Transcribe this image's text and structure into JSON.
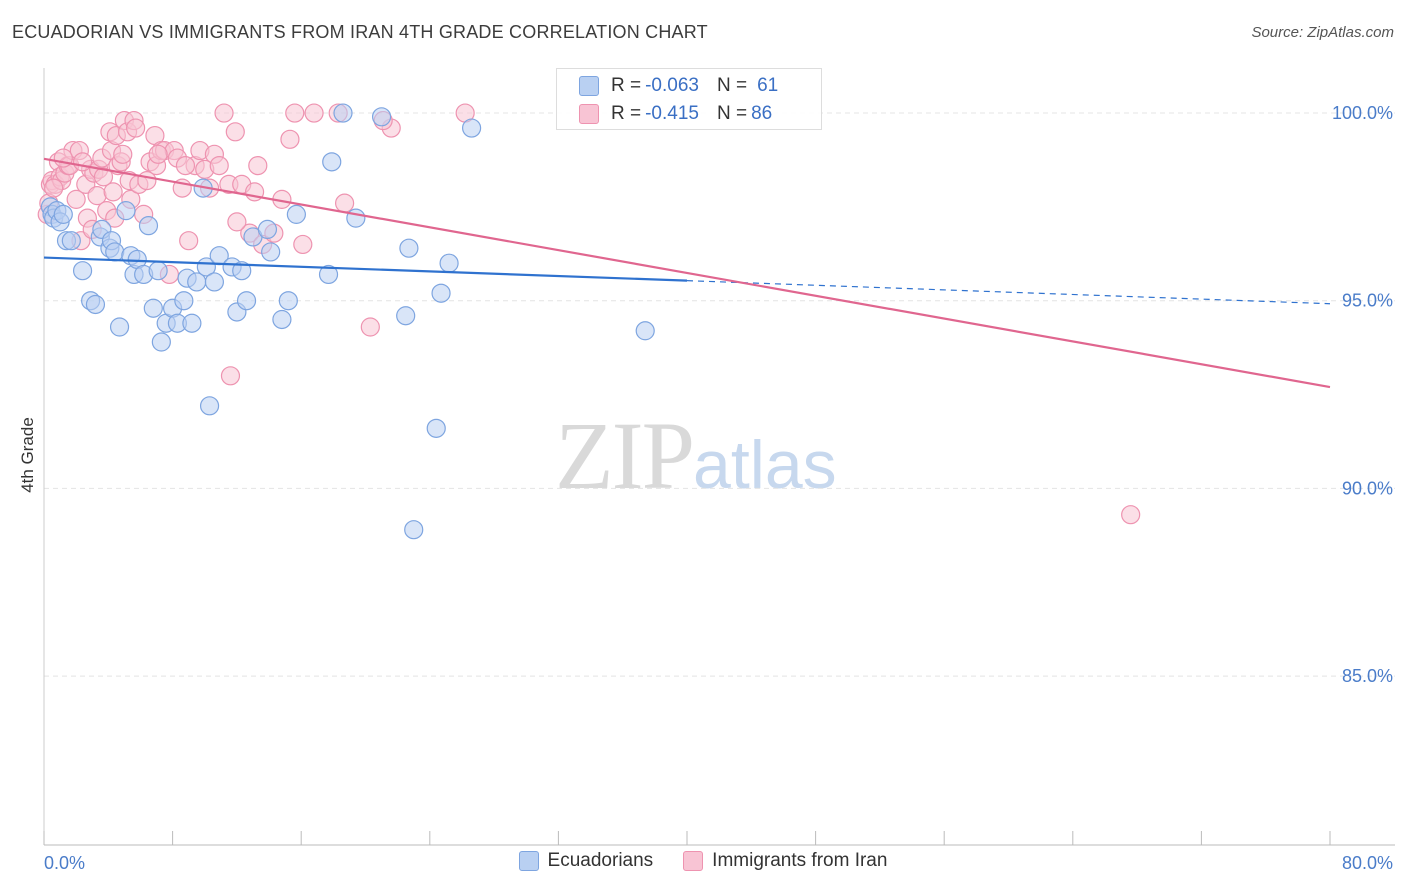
{
  "header": {
    "title": "ECUADORIAN VS IMMIGRANTS FROM IRAN 4TH GRADE CORRELATION CHART",
    "source": "Source: ZipAtlas.com"
  },
  "watermark": {
    "zip": "ZIP",
    "atlas": "atlas"
  },
  "legend": {
    "series1": {
      "r_label": "R = ",
      "r_value": "-0.063",
      "n_label": "N = ",
      "n_value": "61"
    },
    "series2": {
      "r_label": "R = ",
      "r_value": "-0.415",
      "n_label": "N = ",
      "n_value": "86"
    }
  },
  "colors": {
    "blue_fill": "#b9d0f2",
    "blue_stroke": "#7ea5e0",
    "blue_line": "#2f72cf",
    "pink_fill": "#f8c4d4",
    "pink_stroke": "#ee93b0",
    "pink_line": "#e0668f",
    "tick_text": "#4a7cc9",
    "grid": "#e4e4e4"
  },
  "chart_data": {
    "type": "scatter",
    "title": "ECUADORIAN VS IMMIGRANTS FROM IRAN 4TH GRADE CORRELATION CHART",
    "xlabel": "",
    "ylabel": "4th Grade",
    "xlim": [
      0,
      80
    ],
    "ylim": [
      80.5,
      101.2
    ],
    "x_tick_labels": [
      {
        "value": 0,
        "label": "0.0%"
      },
      {
        "value": 80,
        "label": "80.0%"
      }
    ],
    "y_tick_labels": [
      {
        "value": 100,
        "label": "100.0%"
      },
      {
        "value": 95,
        "label": "95.0%"
      },
      {
        "value": 90,
        "label": "90.0%"
      },
      {
        "value": 85,
        "label": "85.0%"
      }
    ],
    "grid": true,
    "legend_position": "top-center",
    "series": [
      {
        "name": "Ecuadorians",
        "r": -0.063,
        "n": 61,
        "trend": {
          "x_start": 0,
          "y_start": 96.15,
          "x_solid_end": 40,
          "x_end": 80,
          "y_end": 94.92
        },
        "points": [
          [
            0.4,
            97.5
          ],
          [
            0.5,
            97.3
          ],
          [
            0.6,
            97.2
          ],
          [
            0.8,
            97.4
          ],
          [
            1.0,
            97.1
          ],
          [
            1.2,
            97.3
          ],
          [
            1.4,
            96.6
          ],
          [
            1.7,
            96.6
          ],
          [
            2.4,
            95.8
          ],
          [
            2.9,
            95.0
          ],
          [
            3.2,
            94.9
          ],
          [
            3.5,
            96.7
          ],
          [
            3.6,
            96.9
          ],
          [
            4.1,
            96.4
          ],
          [
            4.2,
            96.6
          ],
          [
            4.4,
            96.3
          ],
          [
            4.7,
            94.3
          ],
          [
            5.1,
            97.4
          ],
          [
            5.4,
            96.2
          ],
          [
            5.6,
            95.7
          ],
          [
            5.8,
            96.1
          ],
          [
            6.2,
            95.7
          ],
          [
            6.5,
            97.0
          ],
          [
            6.8,
            94.8
          ],
          [
            7.1,
            95.8
          ],
          [
            7.3,
            93.9
          ],
          [
            7.6,
            94.4
          ],
          [
            8.0,
            94.8
          ],
          [
            8.3,
            94.4
          ],
          [
            8.7,
            95.0
          ],
          [
            8.9,
            95.6
          ],
          [
            9.2,
            94.4
          ],
          [
            9.5,
            95.5
          ],
          [
            9.9,
            98.0
          ],
          [
            10.1,
            95.9
          ],
          [
            10.3,
            92.2
          ],
          [
            10.6,
            95.5
          ],
          [
            10.9,
            96.2
          ],
          [
            11.7,
            95.9
          ],
          [
            12.0,
            94.7
          ],
          [
            12.3,
            95.8
          ],
          [
            12.6,
            95.0
          ],
          [
            13.0,
            96.7
          ],
          [
            13.9,
            96.9
          ],
          [
            14.1,
            96.3
          ],
          [
            14.8,
            94.5
          ],
          [
            15.2,
            95.0
          ],
          [
            15.7,
            97.3
          ],
          [
            17.7,
            95.7
          ],
          [
            17.9,
            98.7
          ],
          [
            18.6,
            100.0
          ],
          [
            19.4,
            97.2
          ],
          [
            21.0,
            99.9
          ],
          [
            22.5,
            94.6
          ],
          [
            22.7,
            96.4
          ],
          [
            23.0,
            88.9
          ],
          [
            24.4,
            91.6
          ],
          [
            24.7,
            95.2
          ],
          [
            25.2,
            96.0
          ],
          [
            26.6,
            99.6
          ],
          [
            37.4,
            94.2
          ]
        ]
      },
      {
        "name": "Immigrants from Iran",
        "r": -0.415,
        "n": 86,
        "trend": {
          "x_start": 0,
          "y_start": 98.78,
          "x_end": 80,
          "y_end": 92.7
        },
        "points": [
          [
            0.2,
            97.3
          ],
          [
            0.3,
            97.6
          ],
          [
            0.4,
            98.1
          ],
          [
            0.5,
            98.2
          ],
          [
            0.7,
            98.1
          ],
          [
            0.9,
            98.7
          ],
          [
            1.0,
            98.3
          ],
          [
            1.1,
            98.2
          ],
          [
            1.3,
            98.4
          ],
          [
            1.5,
            98.6
          ],
          [
            1.6,
            98.6
          ],
          [
            1.8,
            99.0
          ],
          [
            2.0,
            97.7
          ],
          [
            2.2,
            99.0
          ],
          [
            2.3,
            96.6
          ],
          [
            2.6,
            98.1
          ],
          [
            2.7,
            97.2
          ],
          [
            2.9,
            98.5
          ],
          [
            3.1,
            98.4
          ],
          [
            3.3,
            97.8
          ],
          [
            3.4,
            98.5
          ],
          [
            3.6,
            98.8
          ],
          [
            3.9,
            97.4
          ],
          [
            4.1,
            99.5
          ],
          [
            4.2,
            99.0
          ],
          [
            4.3,
            97.9
          ],
          [
            4.5,
            99.4
          ],
          [
            4.6,
            98.6
          ],
          [
            4.8,
            98.7
          ],
          [
            5.0,
            99.8
          ],
          [
            5.2,
            99.5
          ],
          [
            5.3,
            98.2
          ],
          [
            5.4,
            97.7
          ],
          [
            5.6,
            99.8
          ],
          [
            5.9,
            98.1
          ],
          [
            6.2,
            97.3
          ],
          [
            6.6,
            98.7
          ],
          [
            6.9,
            99.4
          ],
          [
            7.0,
            98.6
          ],
          [
            7.3,
            99.0
          ],
          [
            7.5,
            99.0
          ],
          [
            7.8,
            95.7
          ],
          [
            8.1,
            99.0
          ],
          [
            8.3,
            98.8
          ],
          [
            8.6,
            98.0
          ],
          [
            9.0,
            96.6
          ],
          [
            9.4,
            98.6
          ],
          [
            9.7,
            99.0
          ],
          [
            10.0,
            98.5
          ],
          [
            10.3,
            98.0
          ],
          [
            10.6,
            98.9
          ],
          [
            10.9,
            98.6
          ],
          [
            11.2,
            100.0
          ],
          [
            11.5,
            98.1
          ],
          [
            11.6,
            93.0
          ],
          [
            11.9,
            99.5
          ],
          [
            12.3,
            98.1
          ],
          [
            12.8,
            96.8
          ],
          [
            13.3,
            98.6
          ],
          [
            13.6,
            96.5
          ],
          [
            14.3,
            96.8
          ],
          [
            14.8,
            97.7
          ],
          [
            15.3,
            99.3
          ],
          [
            15.6,
            100.0
          ],
          [
            16.1,
            96.5
          ],
          [
            16.8,
            100.0
          ],
          [
            18.3,
            100.0
          ],
          [
            18.7,
            97.6
          ],
          [
            20.3,
            94.3
          ],
          [
            21.6,
            99.6
          ],
          [
            26.2,
            100.0
          ],
          [
            67.6,
            89.3
          ],
          [
            0.6,
            98.0
          ],
          [
            1.2,
            98.8
          ],
          [
            2.4,
            98.7
          ],
          [
            3.0,
            96.9
          ],
          [
            3.7,
            98.3
          ],
          [
            4.4,
            97.2
          ],
          [
            4.9,
            98.9
          ],
          [
            5.7,
            99.6
          ],
          [
            6.4,
            98.2
          ],
          [
            7.1,
            98.9
          ],
          [
            8.8,
            98.6
          ],
          [
            12.0,
            97.1
          ],
          [
            21.1,
            99.8
          ],
          [
            13.1,
            97.9
          ]
        ]
      }
    ]
  },
  "bottom_legend": {
    "series1_label": "Ecuadorians",
    "series2_label": "Immigrants from Iran"
  }
}
